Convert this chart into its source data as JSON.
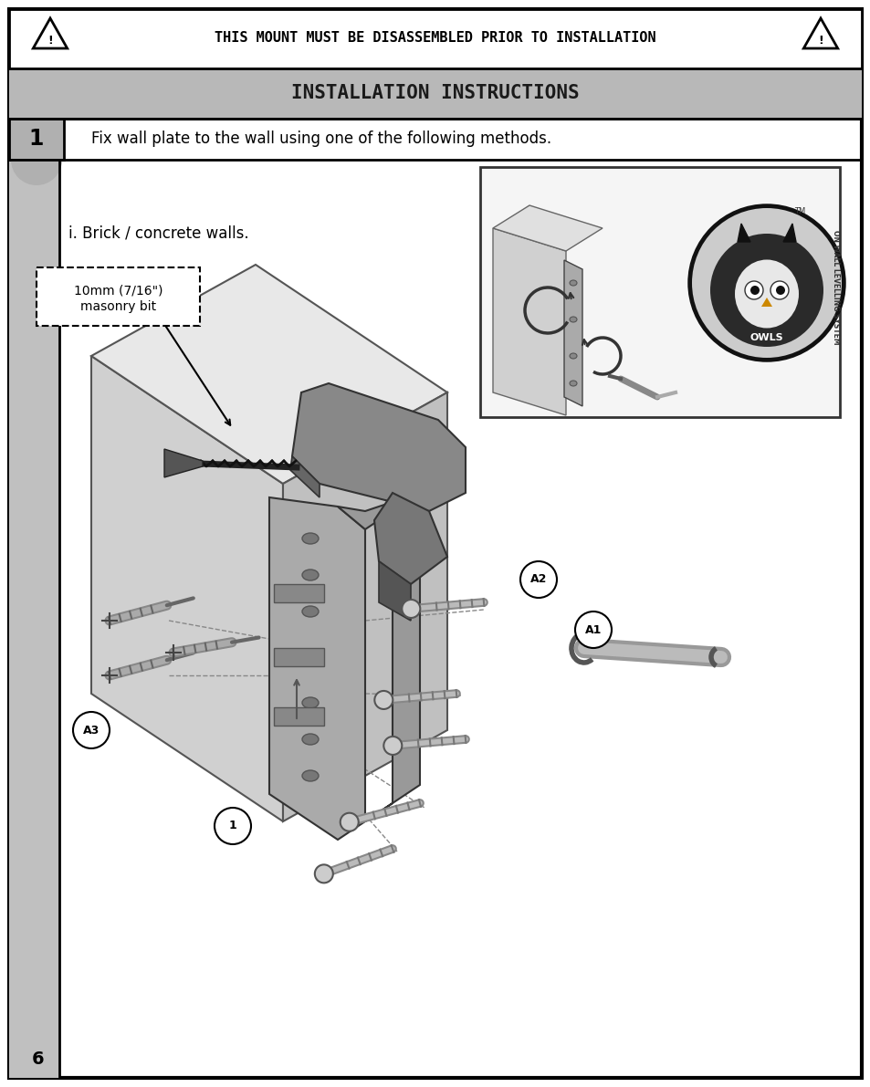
{
  "bg_color": "#ffffff",
  "border_color": "#000000",
  "warning_text": "THIS MOUNT MUST BE DISASSEMBLED PRIOR TO INSTALLATION",
  "title_text": "INSTALLATION INSTRUCTIONS",
  "title_bg": "#b8b8b8",
  "step_num": "1",
  "step_bg": "#b0b0b0",
  "step_text": "Fix wall plate to the wall using one of the following methods.",
  "sub_label": "i. Brick / concrete walls.",
  "box_label_line1": "10mm (7/16\")",
  "box_label_line2": "masonry bit",
  "page_num": "6",
  "label_A1": "A1",
  "label_A2": "A2",
  "label_A3": "A3",
  "label_1": "1"
}
